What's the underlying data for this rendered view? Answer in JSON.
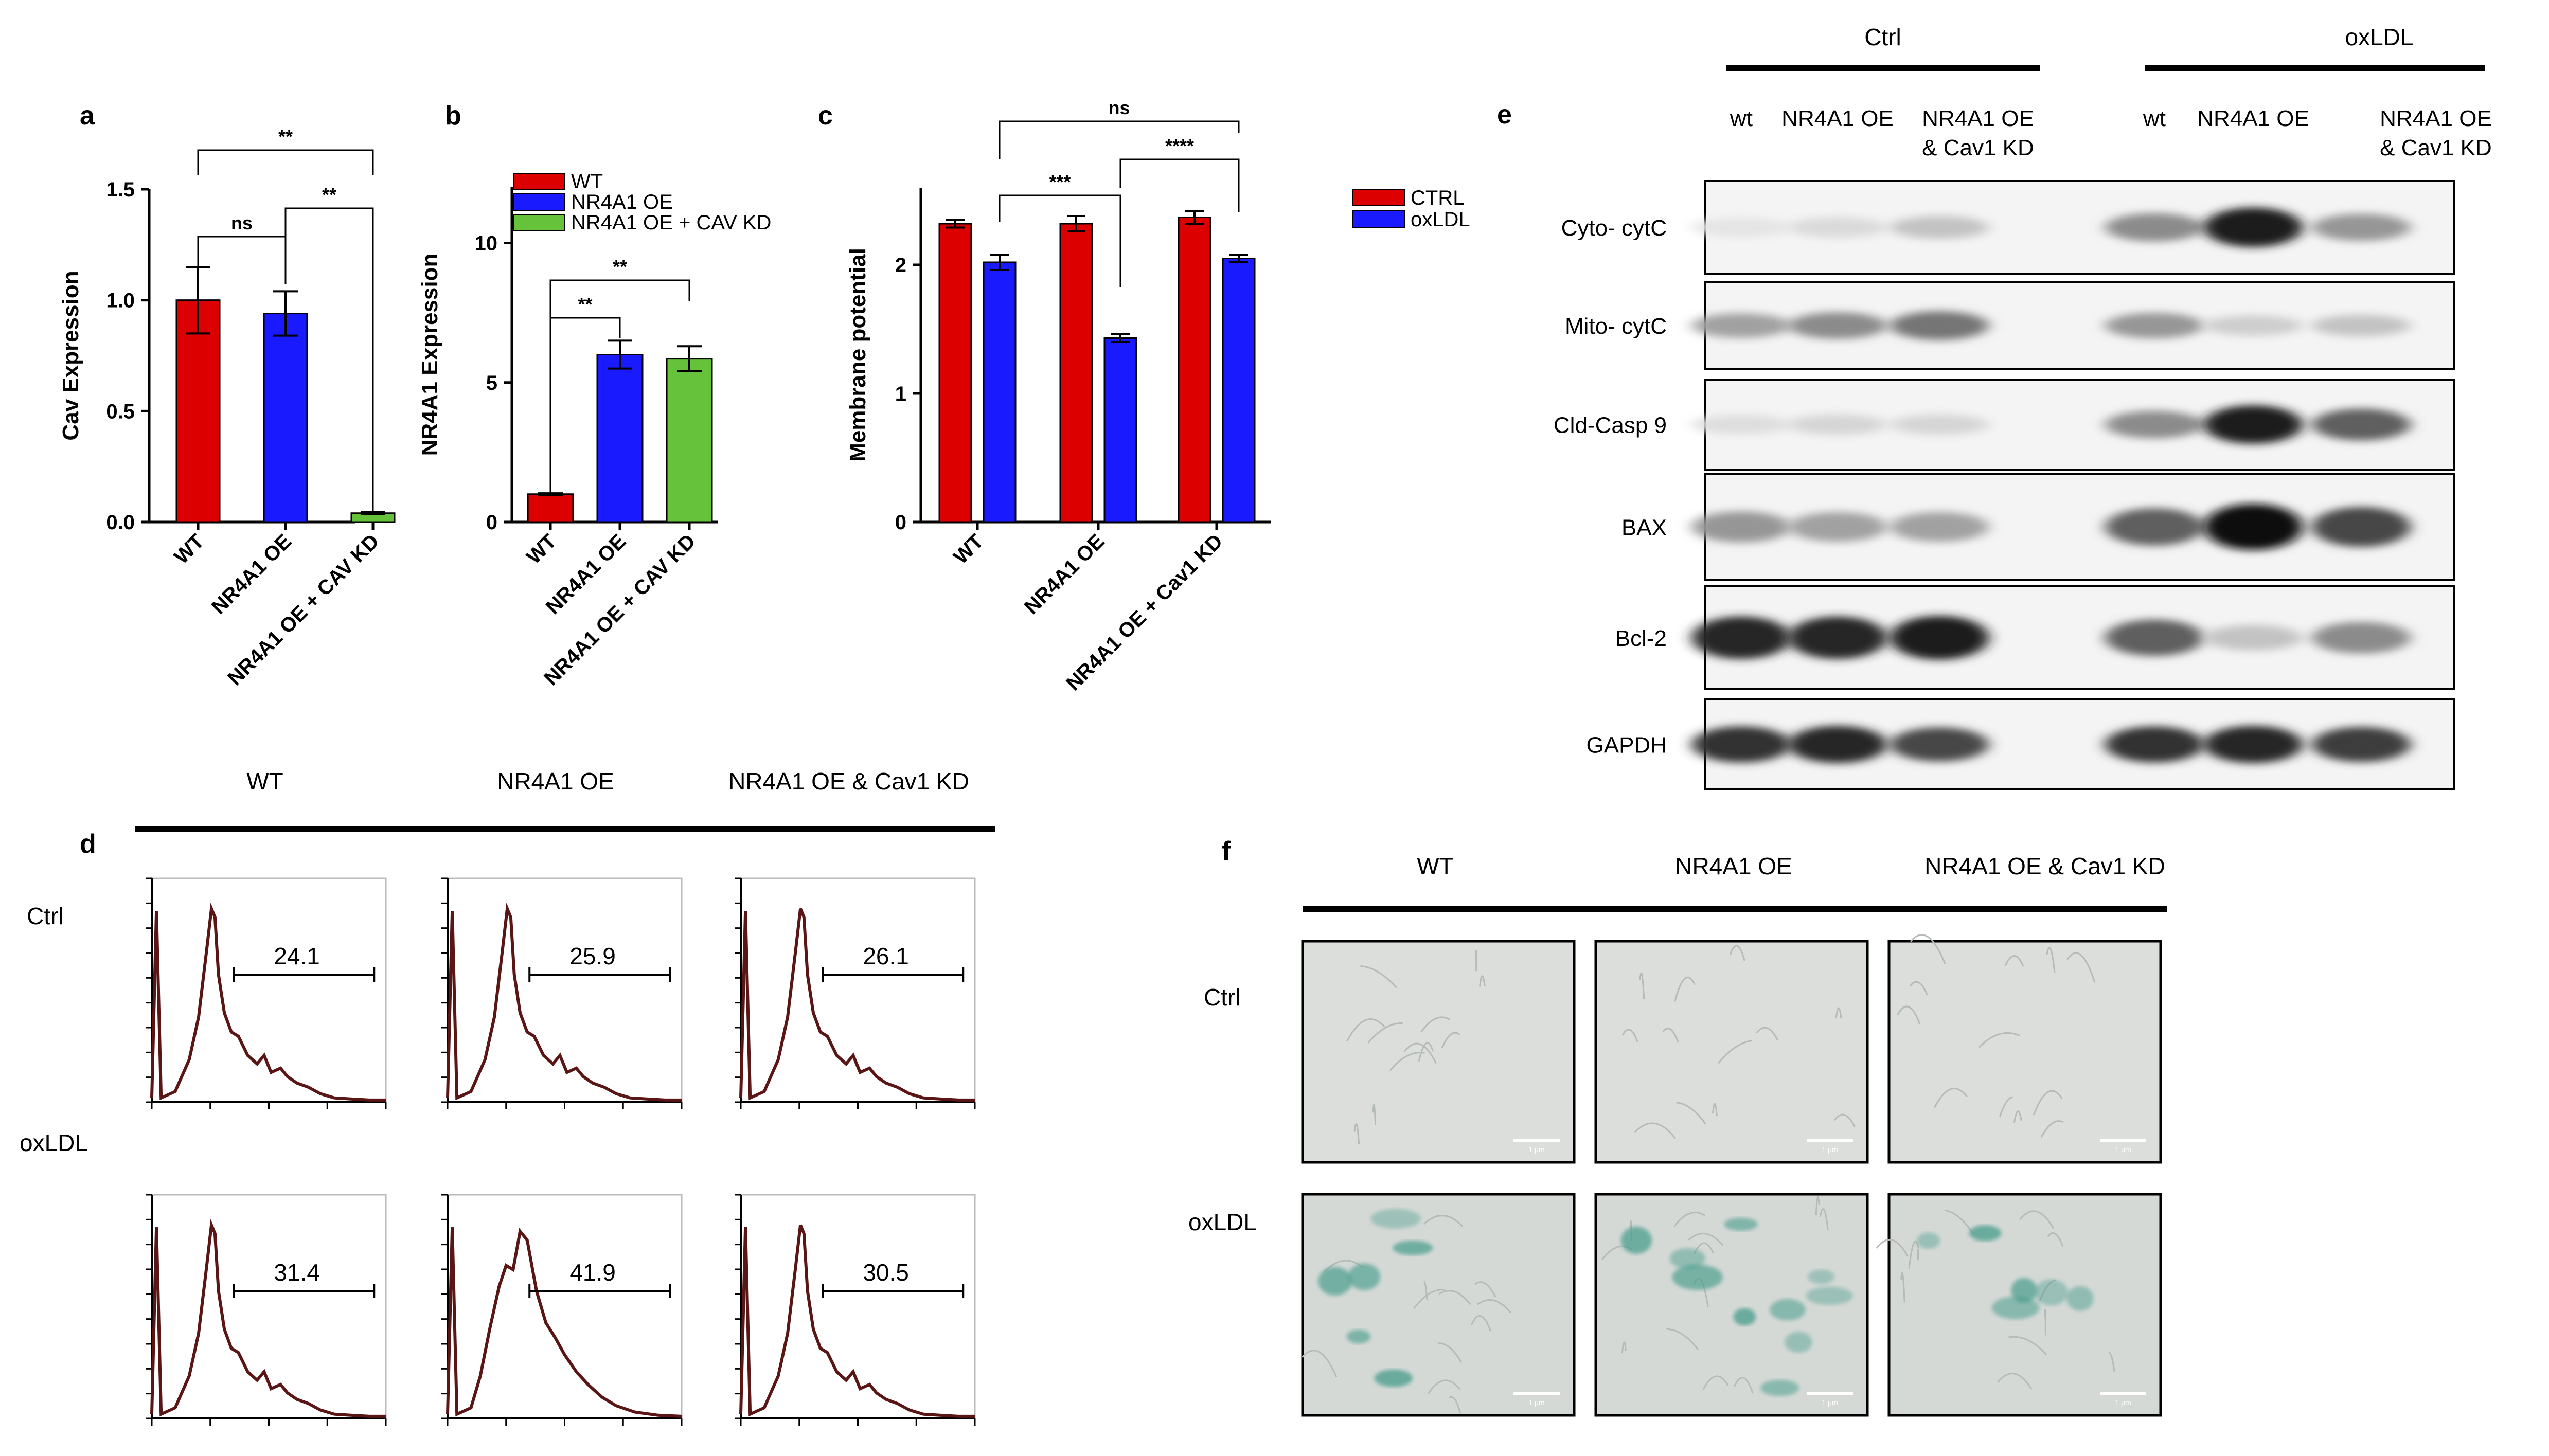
{
  "panels": {
    "a": "a",
    "b": "b",
    "c": "c",
    "d": "d",
    "e": "e",
    "f": "f"
  },
  "colors": {
    "red": "#dd0000",
    "blue": "#1a1aff",
    "green": "#66c23a",
    "curve": "#5a1515",
    "stain": "#3f9a88"
  },
  "chart_data": [
    {
      "id": "a",
      "type": "bar",
      "ylabel": "Cav Expression",
      "ylim": [
        0,
        1.5
      ],
      "yticks": [
        "0.0",
        "0.5",
        "1.0",
        "1.5"
      ],
      "ytick_values": [
        0,
        0.5,
        1.0,
        1.5
      ],
      "categories": [
        "WT",
        "NR4A1 OE",
        "NR4A1 OE + CAV KD"
      ],
      "values": [
        1.0,
        0.94,
        0.04
      ],
      "errors": [
        0.15,
        0.1,
        0.005
      ],
      "bar_colors": [
        "#dd0000",
        "#1a1aff",
        "#66c23a"
      ],
      "significance": [
        {
          "from": 0,
          "to": 1,
          "label": "ns"
        },
        {
          "from": 1,
          "to": 2,
          "label": "**"
        },
        {
          "from": 0,
          "to": 2,
          "label": "**"
        }
      ]
    },
    {
      "id": "b",
      "type": "bar",
      "ylabel": "NR4A1 Expression",
      "ylim": [
        0,
        12
      ],
      "yticks": [
        "0",
        "5",
        "10"
      ],
      "ytick_values": [
        0,
        5,
        10
      ],
      "categories": [
        "WT",
        "NR4A1 OE",
        "NR4A1 OE + CAV KD"
      ],
      "values": [
        1.0,
        6.0,
        5.85
      ],
      "errors": [
        0.03,
        0.5,
        0.45
      ],
      "bar_colors": [
        "#dd0000",
        "#1a1aff",
        "#66c23a"
      ],
      "legend": [
        "WT",
        "NR4A1 OE",
        "NR4A1 OE + CAV KD"
      ],
      "significance": [
        {
          "from": 0,
          "to": 1,
          "label": "**"
        },
        {
          "from": 0,
          "to": 2,
          "label": "**"
        }
      ]
    },
    {
      "id": "c",
      "type": "bar",
      "ylabel": "Membrane potential",
      "ylim": [
        0,
        2.6
      ],
      "yticks": [
        "0",
        "1",
        "2"
      ],
      "ytick_values": [
        0,
        1,
        2
      ],
      "categories": [
        "WT",
        "NR4A1 OE",
        "NR4A1 OE + Cav1 KD"
      ],
      "legend": [
        "CTRL",
        "oxLDL"
      ],
      "series": [
        {
          "name": "CTRL",
          "color": "#dd0000",
          "values": [
            2.32,
            2.32,
            2.37
          ],
          "errors": [
            0.03,
            0.06,
            0.05
          ]
        },
        {
          "name": "oxLDL",
          "color": "#1a1aff",
          "values": [
            2.02,
            1.43,
            2.05
          ],
          "errors": [
            0.06,
            0.03,
            0.03
          ]
        }
      ],
      "significance": [
        {
          "from": "WT-oxLDL",
          "to": "NR4A1 OE-oxLDL",
          "label": "***"
        },
        {
          "from": "NR4A1 OE-oxLDL",
          "to": "NR4A1 OE + Cav1 KD-oxLDL",
          "label": "****"
        },
        {
          "from": "WT-oxLDL",
          "to": "NR4A1 OE + Cav1 KD-oxLDL",
          "label": "ns"
        }
      ]
    }
  ],
  "flow": {
    "columns": [
      "WT",
      "NR4A1 OE",
      "NR4A1 OE & Cav1 KD"
    ],
    "rows": [
      "Ctrl",
      "oxLDL"
    ],
    "gate_values": [
      [
        "24.1",
        "25.9",
        "26.1"
      ],
      [
        "31.4",
        "41.9",
        "30.5"
      ]
    ]
  },
  "blot": {
    "group_headers": [
      "Ctrl",
      "oxLDL"
    ],
    "lanes": [
      "wt",
      "NR4A1 OE",
      "NR4A1 OE\n& Cav1 KD",
      "wt",
      "NR4A1 OE",
      "NR4A1 OE\n& Cav1 KD"
    ],
    "lane_line1": [
      "wt",
      "NR4A1 OE",
      "NR4A1 OE",
      "wt",
      "NR4A1 OE",
      "NR4A1 OE"
    ],
    "lane_line2": [
      "",
      "",
      "& Cav1 KD",
      "",
      "",
      "& Cav1 KD"
    ],
    "rows": [
      "Cyto- cytC",
      "Mito- cytC",
      "Cld-Casp 9",
      "BAX",
      "Bcl-2",
      "GAPDH"
    ],
    "band_intensity": [
      [
        0.05,
        0.1,
        0.2,
        0.45,
        0.95,
        0.4
      ],
      [
        0.35,
        0.45,
        0.55,
        0.4,
        0.15,
        0.2
      ],
      [
        0.08,
        0.12,
        0.12,
        0.45,
        0.95,
        0.65
      ],
      [
        0.4,
        0.35,
        0.35,
        0.65,
        1.0,
        0.75
      ],
      [
        0.9,
        0.9,
        0.95,
        0.65,
        0.2,
        0.45
      ],
      [
        0.85,
        0.9,
        0.75,
        0.85,
        0.9,
        0.8
      ]
    ]
  },
  "micro": {
    "columns": [
      "WT",
      "NR4A1 OE",
      "NR4A1 OE & Cav1 KD"
    ],
    "rows": [
      "Ctrl",
      "oxLDL"
    ],
    "scale_label": "1 μm"
  }
}
